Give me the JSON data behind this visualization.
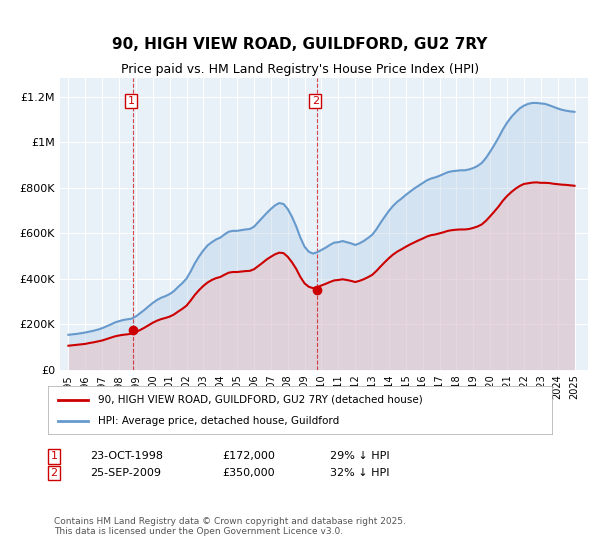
{
  "title": "90, HIGH VIEW ROAD, GUILDFORD, GU2 7RY",
  "subtitle": "Price paid vs. HM Land Registry's House Price Index (HPI)",
  "ylabel_ticks": [
    "£0",
    "£200K",
    "£400K",
    "£600K",
    "£800K",
    "£1M",
    "£1.2M"
  ],
  "ylim": [
    0,
    1300000
  ],
  "xlim_year": [
    1995,
    2025.5
  ],
  "background_chart": "#e8f0f8",
  "background_fig": "#ffffff",
  "grid_color": "#ffffff",
  "line_red_color": "#cc0000",
  "line_blue_color": "#6699cc",
  "line_blue_fill": "#b8d0e8",
  "line_red_fill": "#f0b8b8",
  "purchase1_year": 1998.81,
  "purchase1_price": 172000,
  "purchase2_year": 2009.73,
  "purchase2_price": 350000,
  "label1_text": "1",
  "label2_text": "2",
  "legend_line1": "90, HIGH VIEW ROAD, GUILDFORD, GU2 7RY (detached house)",
  "legend_line2": "HPI: Average price, detached house, Guildford",
  "annotation1": "1    23-OCT-1998    £172,000    29% ↓ HPI",
  "annotation2": "2    25-SEP-2009    £350,000    32% ↓ HPI",
  "footer": "Contains HM Land Registry data © Crown copyright and database right 2025.\nThis data is licensed under the Open Government Licence v3.0.",
  "hpi_years": [
    1995.0,
    1995.25,
    1995.5,
    1995.75,
    1996.0,
    1996.25,
    1996.5,
    1996.75,
    1997.0,
    1997.25,
    1997.5,
    1997.75,
    1998.0,
    1998.25,
    1998.5,
    1998.75,
    1999.0,
    1999.25,
    1999.5,
    1999.75,
    2000.0,
    2000.25,
    2000.5,
    2000.75,
    2001.0,
    2001.25,
    2001.5,
    2001.75,
    2002.0,
    2002.25,
    2002.5,
    2002.75,
    2003.0,
    2003.25,
    2003.5,
    2003.75,
    2004.0,
    2004.25,
    2004.5,
    2004.75,
    2005.0,
    2005.25,
    2005.5,
    2005.75,
    2006.0,
    2006.25,
    2006.5,
    2006.75,
    2007.0,
    2007.25,
    2007.5,
    2007.75,
    2008.0,
    2008.25,
    2008.5,
    2008.75,
    2009.0,
    2009.25,
    2009.5,
    2009.75,
    2010.0,
    2010.25,
    2010.5,
    2010.75,
    2011.0,
    2011.25,
    2011.5,
    2011.75,
    2012.0,
    2012.25,
    2012.5,
    2012.75,
    2013.0,
    2013.25,
    2013.5,
    2013.75,
    2014.0,
    2014.25,
    2014.5,
    2014.75,
    2015.0,
    2015.25,
    2015.5,
    2015.75,
    2016.0,
    2016.25,
    2016.5,
    2016.75,
    2017.0,
    2017.25,
    2017.5,
    2017.75,
    2018.0,
    2018.25,
    2018.5,
    2018.75,
    2019.0,
    2019.25,
    2019.5,
    2019.75,
    2020.0,
    2020.25,
    2020.5,
    2020.75,
    2021.0,
    2021.25,
    2021.5,
    2021.75,
    2022.0,
    2022.25,
    2022.5,
    2022.75,
    2023.0,
    2023.25,
    2023.5,
    2023.75,
    2024.0,
    2024.25,
    2024.5,
    2024.75,
    2025.0
  ],
  "hpi_values": [
    153000,
    155000,
    157000,
    160000,
    163000,
    167000,
    171000,
    176000,
    182000,
    190000,
    198000,
    207000,
    213000,
    218000,
    221000,
    224000,
    234000,
    248000,
    262000,
    278000,
    293000,
    306000,
    316000,
    323000,
    332000,
    345000,
    363000,
    380000,
    400000,
    432000,
    468000,
    498000,
    524000,
    546000,
    560000,
    572000,
    580000,
    594000,
    606000,
    610000,
    610000,
    613000,
    616000,
    618000,
    628000,
    648000,
    668000,
    688000,
    706000,
    722000,
    732000,
    728000,
    706000,
    672000,
    630000,
    580000,
    540000,
    518000,
    510000,
    516000,
    526000,
    536000,
    548000,
    558000,
    560000,
    565000,
    560000,
    555000,
    548000,
    555000,
    565000,
    578000,
    592000,
    616000,
    645000,
    672000,
    698000,
    720000,
    738000,
    752000,
    768000,
    782000,
    796000,
    808000,
    820000,
    832000,
    840000,
    845000,
    852000,
    860000,
    868000,
    872000,
    874000,
    876000,
    876000,
    880000,
    886000,
    895000,
    908000,
    930000,
    958000,
    988000,
    1020000,
    1055000,
    1085000,
    1110000,
    1130000,
    1148000,
    1160000,
    1168000,
    1172000,
    1172000,
    1170000,
    1168000,
    1162000,
    1155000,
    1148000,
    1142000,
    1138000,
    1135000,
    1133000
  ],
  "red_years": [
    1995.0,
    1995.25,
    1995.5,
    1995.75,
    1996.0,
    1996.25,
    1996.5,
    1996.75,
    1997.0,
    1997.25,
    1997.5,
    1997.75,
    1998.0,
    1998.25,
    1998.5,
    1998.75,
    1999.0,
    1999.25,
    1999.5,
    1999.75,
    2000.0,
    2000.25,
    2000.5,
    2000.75,
    2001.0,
    2001.25,
    2001.5,
    2001.75,
    2002.0,
    2002.25,
    2002.5,
    2002.75,
    2003.0,
    2003.25,
    2003.5,
    2003.75,
    2004.0,
    2004.25,
    2004.5,
    2004.75,
    2005.0,
    2005.25,
    2005.5,
    2005.75,
    2006.0,
    2006.25,
    2006.5,
    2006.75,
    2007.0,
    2007.25,
    2007.5,
    2007.75,
    2008.0,
    2008.25,
    2008.5,
    2008.75,
    2009.0,
    2009.25,
    2009.5,
    2009.75,
    2010.0,
    2010.25,
    2010.5,
    2010.75,
    2011.0,
    2011.25,
    2011.5,
    2011.75,
    2012.0,
    2012.25,
    2012.5,
    2012.75,
    2013.0,
    2013.25,
    2013.5,
    2013.75,
    2014.0,
    2014.25,
    2014.5,
    2014.75,
    2015.0,
    2015.25,
    2015.5,
    2015.75,
    2016.0,
    2016.25,
    2016.5,
    2016.75,
    2017.0,
    2017.25,
    2017.5,
    2017.75,
    2018.0,
    2018.25,
    2018.5,
    2018.75,
    2019.0,
    2019.25,
    2019.5,
    2019.75,
    2020.0,
    2020.25,
    2020.5,
    2020.75,
    2021.0,
    2021.25,
    2021.5,
    2021.75,
    2022.0,
    2022.25,
    2022.5,
    2022.75,
    2023.0,
    2023.25,
    2023.5,
    2023.75,
    2024.0,
    2024.25,
    2024.5,
    2024.75,
    2025.0
  ],
  "red_values": [
    105000,
    107000,
    109000,
    111000,
    113000,
    117000,
    120000,
    124000,
    128000,
    134000,
    140000,
    146000,
    150000,
    153000,
    155000,
    158000,
    165000,
    174000,
    184000,
    195000,
    206000,
    215000,
    222000,
    227000,
    233000,
    242000,
    255000,
    267000,
    281000,
    304000,
    329000,
    350000,
    368000,
    383000,
    394000,
    402000,
    407000,
    417000,
    426000,
    429000,
    429000,
    431000,
    433000,
    434000,
    441000,
    455000,
    469000,
    484000,
    496000,
    507000,
    514000,
    512000,
    496000,
    472000,
    443000,
    407000,
    379000,
    364000,
    358000,
    362000,
    370000,
    377000,
    385000,
    392000,
    394000,
    397000,
    394000,
    390000,
    385000,
    390000,
    397000,
    406000,
    416000,
    433000,
    453000,
    472000,
    490000,
    506000,
    519000,
    529000,
    540000,
    550000,
    559000,
    568000,
    576000,
    585000,
    591000,
    594000,
    599000,
    604000,
    610000,
    613000,
    615000,
    616000,
    616000,
    618000,
    623000,
    629000,
    638000,
    654000,
    674000,
    695000,
    717000,
    742000,
    763000,
    780000,
    795000,
    807000,
    816000,
    819000,
    822000,
    823000,
    821000,
    821000,
    820000,
    817000,
    815000,
    813000,
    812000,
    810000,
    808000
  ]
}
